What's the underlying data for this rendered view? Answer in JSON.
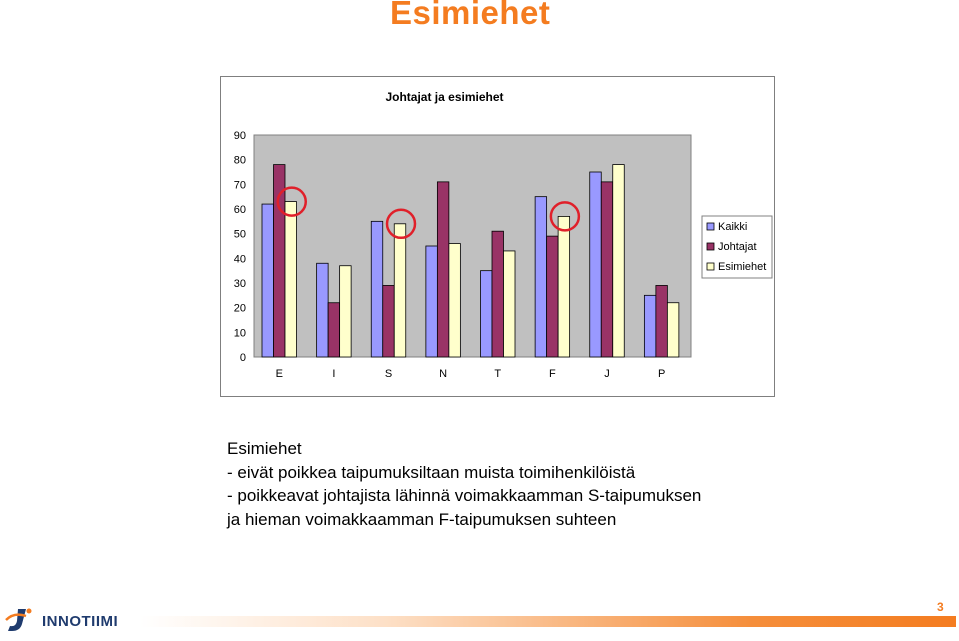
{
  "slide": {
    "title": "Esimiehet",
    "body_lines": [
      "Esimiehet",
      "- eivät poikkea taipumuksiltaan muista toimihenkilöistä",
      "- poikkeavat johtajista lähinnä voimakkaamman S-taipumuksen",
      "ja hieman voimakkaamman F-taipumuksen suhteen"
    ],
    "page_number": "3",
    "logo_text": "INNOTIIMI"
  },
  "colors": {
    "title": "#f47c20",
    "plot_bg": "#c0c0c0",
    "kaikki": "#9999ff",
    "johtajat": "#993366",
    "esimiehet": "#ffffcc",
    "highlight_circle": "#e0202a"
  },
  "chart_data": {
    "type": "bar",
    "title": "Johtajat ja esimiehet",
    "xlabel": "",
    "ylabel": "",
    "categories": [
      "E",
      "I",
      "S",
      "N",
      "T",
      "F",
      "J",
      "P"
    ],
    "series": [
      {
        "name": "Kaikki",
        "values": [
          62,
          38,
          55,
          45,
          35,
          65,
          75,
          25
        ]
      },
      {
        "name": "Johtajat",
        "values": [
          78,
          22,
          29,
          71,
          51,
          49,
          71,
          29
        ]
      },
      {
        "name": "Esimiehet",
        "values": [
          63,
          37,
          54,
          46,
          43,
          57,
          78,
          22
        ]
      }
    ],
    "ylim": [
      0,
      90
    ],
    "yticks": [
      0,
      10,
      20,
      30,
      40,
      50,
      60,
      70,
      80,
      90
    ],
    "grid": false,
    "legend": "right",
    "highlighted": [
      {
        "category": "E",
        "series": "Esimiehet"
      },
      {
        "category": "S",
        "series": "Esimiehet"
      },
      {
        "category": "F",
        "series": "Esimiehet"
      }
    ]
  }
}
